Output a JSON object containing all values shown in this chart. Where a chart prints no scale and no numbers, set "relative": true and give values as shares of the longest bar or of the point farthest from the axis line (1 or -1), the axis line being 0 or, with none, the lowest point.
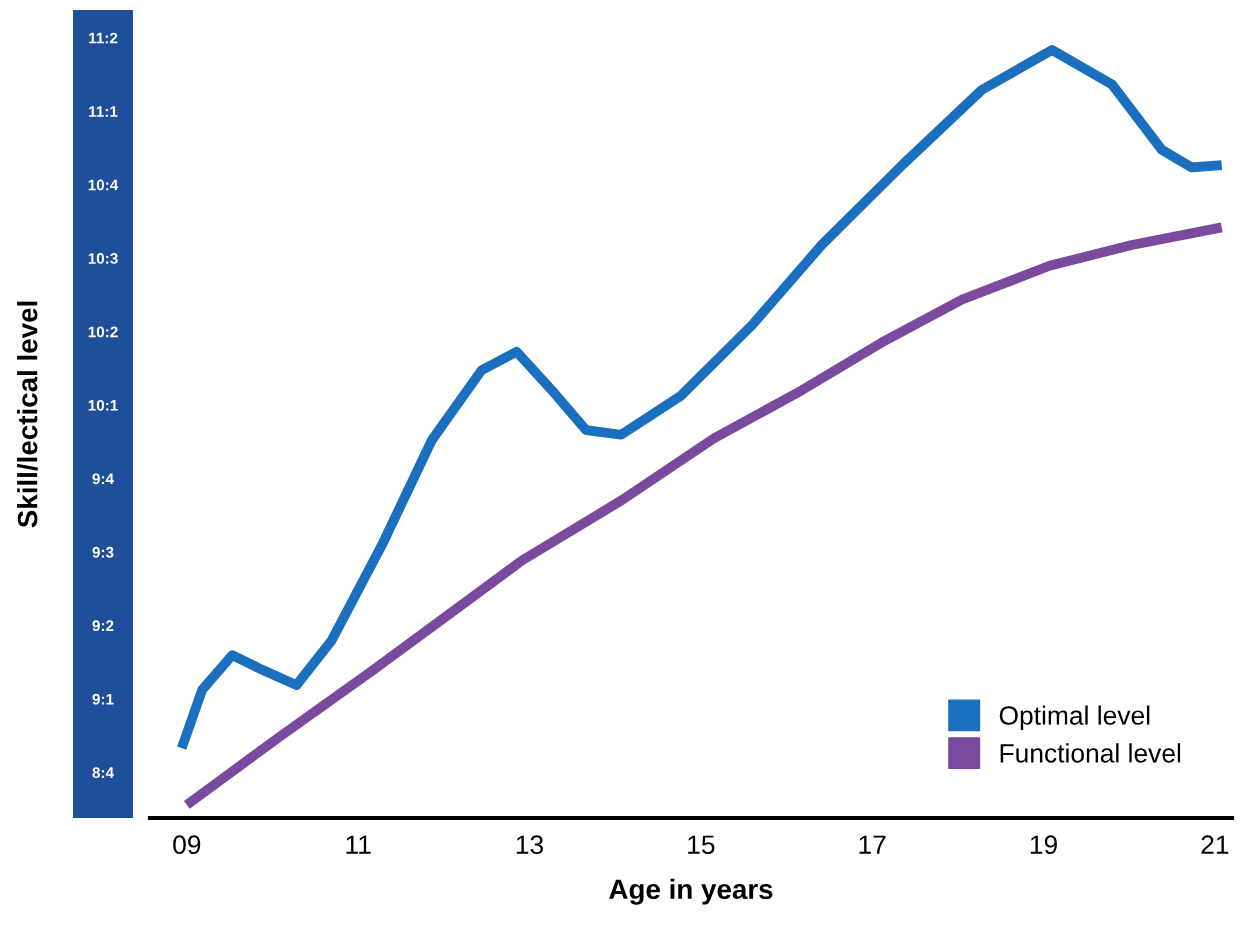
{
  "chart_data": {
    "type": "line",
    "relative": true,
    "xlabel": "Age in years",
    "ylabel": "Skill/lectical level",
    "xlim": [
      8.57,
      21.2
    ],
    "xticks": [
      {
        "value": 9,
        "label": "09"
      },
      11,
      13,
      15,
      17,
      19,
      21
    ],
    "annotations": [
      "8:4",
      "9:1",
      "9:2",
      "9:3",
      "9:4",
      "10:1",
      "10:2",
      "10:3",
      "10:4",
      "11:1",
      "11:2"
    ],
    "grid": false,
    "legend": "bottom right",
    "marker": "none",
    "line_style": "solid",
    "series": [
      {
        "name": "Optimal level",
        "color": "#1a6fbf",
        "x": [
          8.94,
          9.18,
          9.53,
          9.88,
          10.28,
          10.69,
          11.28,
          11.86,
          12.44,
          12.85,
          13.26,
          13.66,
          14.07,
          14.77,
          15.6,
          16.41,
          17.35,
          18.28,
          19.1,
          19.8,
          20.38,
          20.73,
          21.08
        ],
        "values": [
          0.091,
          0.167,
          0.212,
          0.193,
          0.173,
          0.231,
          0.356,
          0.492,
          0.583,
          0.607,
          0.557,
          0.505,
          0.499,
          0.55,
          0.642,
          0.746,
          0.85,
          0.948,
          1,
          0.955,
          0.87,
          0.847,
          0.85
        ]
      },
      {
        "name": "Functional level",
        "color": "#7a4a9e",
        "x": [
          9.0,
          10.11,
          11.18,
          12.91,
          14.08,
          15.15,
          16.18,
          17.11,
          18.05,
          19.07,
          20.03,
          21.08
        ],
        "values": [
          0.017,
          0.108,
          0.193,
          0.335,
          0.414,
          0.494,
          0.557,
          0.619,
          0.675,
          0.719,
          0.746,
          0.769
        ]
      }
    ]
  }
}
